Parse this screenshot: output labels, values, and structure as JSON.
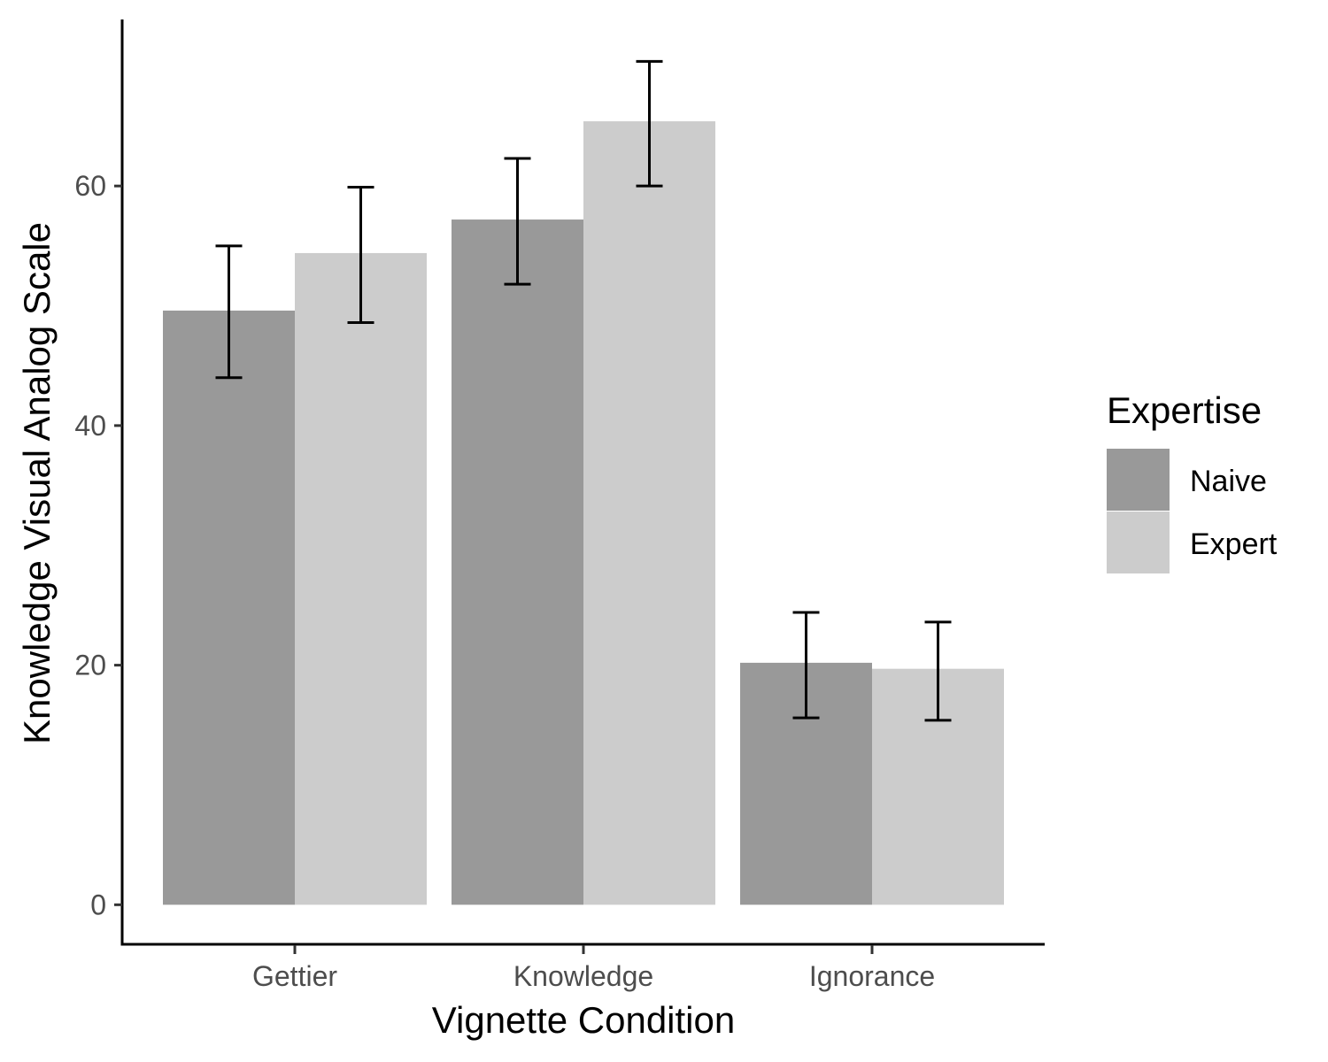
{
  "chart_data": {
    "type": "bar",
    "categories": [
      "Gettier",
      "Knowledge",
      "Ignorance"
    ],
    "series": [
      {
        "name": "Naive",
        "color": "#999999",
        "values": [
          49.6,
          57.2,
          20.2
        ],
        "error_low": [
          44.0,
          51.8,
          15.6
        ],
        "error_high": [
          55.0,
          62.3,
          24.4
        ]
      },
      {
        "name": "Expert",
        "color": "#cccccc",
        "values": [
          54.4,
          65.4,
          19.7
        ],
        "error_low": [
          48.6,
          60.0,
          15.4
        ],
        "error_high": [
          59.9,
          70.4,
          23.6
        ]
      }
    ],
    "xlabel": "Vignette Condition",
    "ylabel": "Knowledge Visual Analog Scale",
    "yticks": [
      0,
      20,
      40,
      60
    ],
    "ylim": [
      -3.3,
      73.9
    ],
    "grid": false,
    "legend": {
      "title": "Expertise",
      "position": "right"
    }
  }
}
